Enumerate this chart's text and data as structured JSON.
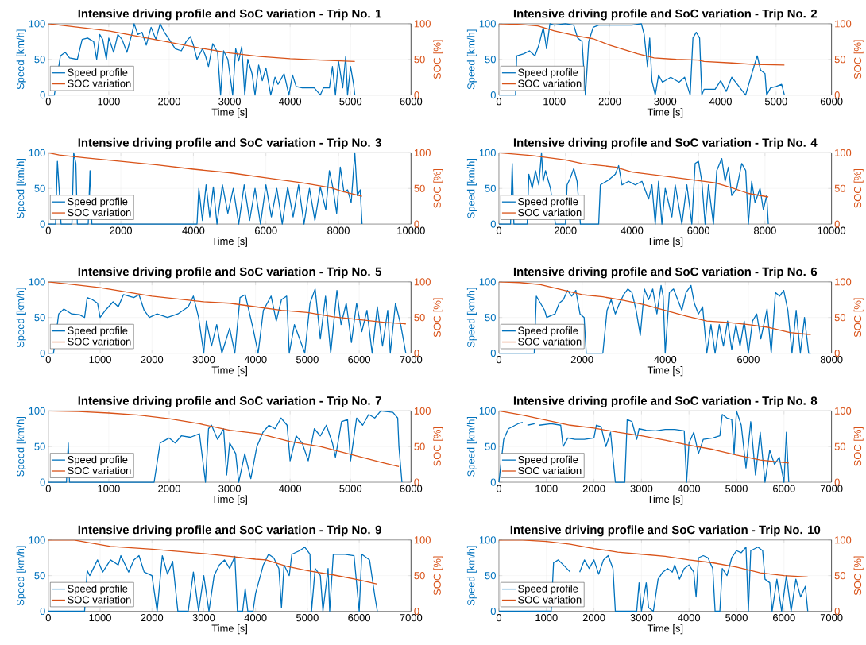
{
  "chart_data": [
    {
      "type": "line",
      "title": "Intensive driving profile and SoC variation - Trip No. 1",
      "xlabel": "Time [s]",
      "ylabel": "Speed [km/h]",
      "y2label": "SOC [%]",
      "xlim": [
        0,
        6000
      ],
      "xticks": [
        0,
        1000,
        2000,
        3000,
        4000,
        5000,
        6000
      ],
      "ylim": [
        0,
        100
      ],
      "yticks": [
        0,
        50,
        100
      ],
      "y2lim": [
        0,
        100
      ],
      "y2ticks": [
        0,
        50,
        100
      ],
      "grid": true,
      "legend": "bottom left",
      "series": [
        {
          "name": "Speed profile",
          "color": "#0072bd",
          "x": [
            0,
            100,
            200,
            280,
            350,
            480,
            560,
            650,
            750,
            800,
            850,
            900,
            960,
            1000,
            1080,
            1150,
            1220,
            1300,
            1380,
            1420,
            1480,
            1550,
            1620,
            1700,
            1780,
            1850,
            1920,
            2000,
            2100,
            2200,
            2280,
            2350,
            2400,
            2460,
            2550,
            2600,
            2650,
            2720,
            2800,
            2850,
            2900,
            2970,
            3050,
            3100,
            3150,
            3200,
            3250,
            3300,
            3370,
            3420,
            3480,
            3540,
            3600,
            3680,
            3750,
            3800,
            3900,
            3980,
            4040,
            4100,
            4200,
            4400,
            4500,
            4550,
            4650,
            4700,
            4750,
            4800,
            4870,
            4920,
            4950,
            5000,
            5050,
            5070
          ],
          "values": [
            0,
            0,
            55,
            60,
            52,
            50,
            78,
            80,
            75,
            50,
            85,
            78,
            50,
            80,
            60,
            85,
            78,
            60,
            85,
            100,
            85,
            88,
            70,
            95,
            78,
            100,
            88,
            78,
            65,
            62,
            75,
            82,
            70,
            50,
            65,
            55,
            40,
            72,
            60,
            0,
            62,
            50,
            0,
            65,
            48,
            68,
            0,
            50,
            30,
            0,
            42,
            20,
            38,
            0,
            25,
            15,
            30,
            0,
            28,
            12,
            10,
            10,
            0,
            10,
            10,
            40,
            0,
            48,
            10,
            54,
            0,
            40,
            15,
            0
          ]
        },
        {
          "name": "SOC variation",
          "color": "#d95319",
          "axis": "y2",
          "x": [
            0,
            500,
            1000,
            1500,
            2000,
            2500,
            3000,
            3500,
            4000,
            4500,
            5070
          ],
          "values": [
            100,
            95,
            90,
            82,
            74,
            66,
            59,
            54,
            51,
            49,
            47
          ]
        }
      ]
    },
    {
      "type": "line",
      "title": "Intensive driving profile and SoC variation - Trip No. 2",
      "xlabel": "Time [s]",
      "ylabel": "Speed [km/h]",
      "y2label": "SOC [%]",
      "xlim": [
        0,
        6000
      ],
      "xticks": [
        0,
        1000,
        2000,
        3000,
        4000,
        5000,
        6000
      ],
      "ylim": [
        0,
        100
      ],
      "yticks": [
        0,
        50,
        100
      ],
      "y2lim": [
        0,
        100
      ],
      "y2ticks": [
        0,
        50,
        100
      ],
      "grid": true,
      "legend": "bottom left",
      "series": [
        {
          "name": "Speed profile",
          "color": "#0072bd",
          "x": [
            0,
            300,
            320,
            450,
            550,
            650,
            720,
            800,
            860,
            920,
            1000,
            1200,
            1350,
            1420,
            1500,
            1560,
            1620,
            1700,
            1800,
            2100,
            2400,
            2570,
            2620,
            2680,
            2720,
            2760,
            2820,
            2880,
            2950,
            3100,
            3250,
            3350,
            3450,
            3500,
            3560,
            3620,
            3660,
            3700,
            3900,
            4000,
            4100,
            4200,
            4350,
            4450,
            4600,
            4660,
            4720,
            4800,
            4830,
            4900,
            5000,
            5100,
            5150
          ],
          "values": [
            0,
            0,
            55,
            58,
            62,
            55,
            70,
            95,
            65,
            100,
            98,
            100,
            98,
            80,
            75,
            0,
            75,
            95,
            98,
            98,
            98,
            100,
            85,
            40,
            80,
            20,
            0,
            28,
            18,
            25,
            18,
            25,
            0,
            80,
            88,
            80,
            0,
            8,
            8,
            20,
            5,
            25,
            10,
            0,
            40,
            55,
            35,
            30,
            0,
            10,
            12,
            15,
            0
          ]
        },
        {
          "name": "SOC variation",
          "color": "#d95319",
          "axis": "y2",
          "x": [
            0,
            400,
            700,
            1000,
            1400,
            1700,
            2000,
            2500,
            2800,
            3200,
            3600,
            3700,
            4200,
            4600,
            5150
          ],
          "values": [
            100,
            99,
            97,
            90,
            83,
            79,
            70,
            58,
            52,
            50,
            49,
            47,
            45,
            43,
            42
          ]
        }
      ]
    },
    {
      "type": "line",
      "title": "Intensive driving profile and SoC variation - Trip No. 3",
      "xlabel": "Time [s]",
      "ylabel": "Speed [km/h]",
      "y2label": "SOC [%]",
      "xlim": [
        0,
        10000
      ],
      "xticks": [
        0,
        2000,
        4000,
        6000,
        8000,
        10000
      ],
      "ylim": [
        0,
        100
      ],
      "yticks": [
        0,
        50,
        100
      ],
      "y2lim": [
        0,
        100
      ],
      "y2ticks": [
        0,
        50,
        100
      ],
      "grid": true,
      "legend": "bottom left",
      "series": [
        {
          "name": "Speed profile",
          "color": "#0072bd",
          "x": [
            0,
            200,
            250,
            310,
            350,
            650,
            700,
            760,
            800,
            1100,
            1150,
            1200,
            4100,
            4150,
            4250,
            4350,
            4450,
            4550,
            4650,
            4800,
            4950,
            5100,
            5250,
            5400,
            5550,
            5700,
            5850,
            6000,
            6150,
            6300,
            6450,
            6600,
            6750,
            6900,
            7050,
            7200,
            7350,
            7500,
            7650,
            7750,
            7850,
            7950,
            8050,
            8150,
            8250,
            8350,
            8450,
            8520,
            8600,
            8650
          ],
          "values": [
            0,
            0,
            88,
            40,
            0,
            0,
            100,
            85,
            0,
            0,
            75,
            0,
            0,
            50,
            5,
            55,
            10,
            52,
            0,
            55,
            15,
            50,
            0,
            55,
            5,
            50,
            0,
            55,
            10,
            50,
            0,
            52,
            10,
            55,
            0,
            50,
            5,
            52,
            20,
            75,
            50,
            15,
            80,
            45,
            48,
            30,
            100,
            40,
            48,
            0
          ]
        },
        {
          "name": "SOC variation",
          "color": "#d95319",
          "axis": "y2",
          "x": [
            0,
            300,
            1000,
            2000,
            3000,
            4000,
            5000,
            6000,
            7000,
            7800,
            8100,
            8650
          ],
          "values": [
            100,
            97,
            93,
            88,
            83,
            77,
            72,
            65,
            58,
            51,
            46,
            39
          ]
        }
      ]
    },
    {
      "type": "line",
      "title": "Intensive driving profile and SoC variation - Trip No. 4",
      "xlabel": "Time [s]",
      "ylabel": "Speed [km/h]",
      "y2label": "SOC [%]",
      "xlim": [
        0,
        10000
      ],
      "xticks": [
        0,
        2000,
        4000,
        6000,
        8000,
        10000
      ],
      "ylim": [
        0,
        100
      ],
      "yticks": [
        0,
        50,
        100
      ],
      "y2lim": [
        0,
        100
      ],
      "y2ticks": [
        0,
        50,
        100
      ],
      "grid": true,
      "legend": "bottom left",
      "series": [
        {
          "name": "Speed profile",
          "color": "#0072bd",
          "x": [
            0,
            350,
            400,
            450,
            850,
            900,
            1000,
            1100,
            1200,
            1280,
            1330,
            1400,
            1550,
            1700,
            2000,
            2050,
            2150,
            2250,
            2350,
            2450,
            3000,
            3050,
            3300,
            3500,
            3600,
            3700,
            3900,
            4100,
            4300,
            4500,
            4600,
            4700,
            4800,
            4900,
            5000,
            5200,
            5300,
            5500,
            5650,
            5800,
            5900,
            6000,
            6100,
            6200,
            6300,
            6450,
            6550,
            6700,
            6800,
            6900,
            7000,
            7150,
            7300,
            7420,
            7500,
            7600,
            7700,
            7850,
            7950,
            8050,
            8100
          ],
          "values": [
            0,
            0,
            85,
            0,
            0,
            70,
            50,
            75,
            55,
            100,
            60,
            75,
            50,
            0,
            0,
            55,
            65,
            78,
            60,
            0,
            0,
            55,
            62,
            70,
            82,
            55,
            60,
            55,
            60,
            35,
            55,
            0,
            60,
            0,
            50,
            10,
            55,
            0,
            55,
            0,
            85,
            88,
            60,
            0,
            55,
            0,
            75,
            92,
            60,
            80,
            40,
            50,
            85,
            75,
            0,
            60,
            30,
            50,
            20,
            40,
            0
          ]
        },
        {
          "name": "SOC variation",
          "color": "#d95319",
          "axis": "y2",
          "x": [
            0,
            500,
            1000,
            2000,
            2500,
            3500,
            4000,
            5000,
            6000,
            6500,
            7000,
            7500,
            8100
          ],
          "values": [
            100,
            98,
            96,
            90,
            85,
            80,
            73,
            67,
            61,
            58,
            51,
            43,
            38
          ]
        }
      ]
    },
    {
      "type": "line",
      "title": "Intensive driving profile and SoC variation - Trip No. 5",
      "xlabel": "Time [s]",
      "ylabel": "Speed [km/h]",
      "y2label": "SOC [%]",
      "xlim": [
        0,
        7000
      ],
      "xticks": [
        0,
        1000,
        2000,
        3000,
        4000,
        5000,
        6000,
        7000
      ],
      "ylim": [
        0,
        100
      ],
      "yticks": [
        0,
        50,
        100
      ],
      "y2lim": [
        0,
        100
      ],
      "y2ticks": [
        0,
        50,
        100
      ],
      "grid": true,
      "legend": "bottom left",
      "series": [
        {
          "name": "Speed profile",
          "color": "#0072bd",
          "x": [
            0,
            100,
            200,
            300,
            450,
            600,
            700,
            750,
            850,
            950,
            1000,
            1100,
            1250,
            1350,
            1450,
            1550,
            1650,
            1750,
            1850,
            1950,
            2100,
            2300,
            2500,
            2700,
            2800,
            2900,
            3000,
            3050,
            3150,
            3250,
            3350,
            3500,
            3600,
            3700,
            3800,
            3950,
            4050,
            4150,
            4300,
            4400,
            4500,
            4600,
            4650,
            4750,
            4850,
            4950,
            5050,
            5150,
            5250,
            5350,
            5450,
            5570,
            5650,
            5750,
            5850,
            5950,
            6050,
            6150,
            6250,
            6350,
            6450,
            6550,
            6600,
            6700,
            6800,
            6900
          ],
          "values": [
            0,
            0,
            55,
            62,
            55,
            54,
            50,
            78,
            75,
            70,
            50,
            60,
            72,
            65,
            82,
            80,
            78,
            82,
            60,
            50,
            55,
            50,
            55,
            65,
            80,
            50,
            0,
            45,
            10,
            40,
            0,
            35,
            0,
            78,
            82,
            35,
            0,
            60,
            80,
            45,
            75,
            80,
            0,
            40,
            20,
            0,
            70,
            90,
            20,
            80,
            0,
            88,
            40,
            70,
            15,
            70,
            30,
            60,
            0,
            65,
            10,
            60,
            0,
            70,
            40,
            0
          ]
        },
        {
          "name": "SOC variation",
          "color": "#d95319",
          "axis": "y2",
          "x": [
            0,
            500,
            1000,
            2000,
            3000,
            3500,
            4000,
            4500,
            5000,
            5500,
            6000,
            6500,
            6900
          ],
          "values": [
            100,
            96,
            92,
            80,
            72,
            70,
            65,
            60,
            57,
            51,
            47,
            43,
            41
          ]
        }
      ]
    },
    {
      "type": "line",
      "title": "Intensive driving profile and SoC variation - Trip No. 6",
      "xlabel": "Time [s]",
      "ylabel": "Speed [km/h]",
      "y2label": "SOC [%]",
      "xlim": [
        0,
        8000
      ],
      "xticks": [
        0,
        2000,
        4000,
        6000,
        8000
      ],
      "ylim": [
        0,
        100
      ],
      "yticks": [
        0,
        50,
        100
      ],
      "y2lim": [
        0,
        100
      ],
      "y2ticks": [
        0,
        50,
        100
      ],
      "grid": true,
      "legend": "bottom left",
      "series": [
        {
          "name": "Speed profile",
          "color": "#0072bd",
          "x": [
            0,
            850,
            900,
            1000,
            1100,
            1150,
            1350,
            1450,
            1550,
            1650,
            1750,
            1850,
            1950,
            2050,
            2100,
            2500,
            2600,
            2700,
            2800,
            2900,
            3000,
            3100,
            3200,
            3300,
            3400,
            3500,
            3600,
            3700,
            3800,
            3900,
            3950,
            4000,
            4100,
            4200,
            4300,
            4400,
            4500,
            4620,
            4700,
            4800,
            4900,
            5000,
            5100,
            5200,
            5300,
            5400,
            5500,
            5600,
            5700,
            5800,
            5900,
            6000,
            6100,
            6200,
            6300,
            6450,
            6550,
            6650,
            6750,
            6850,
            6950,
            7050,
            7150,
            7250,
            7350,
            7450,
            7500
          ],
          "values": [
            0,
            0,
            80,
            70,
            60,
            50,
            55,
            70,
            75,
            88,
            80,
            88,
            55,
            50,
            0,
            0,
            60,
            75,
            55,
            70,
            82,
            90,
            85,
            60,
            25,
            90,
            75,
            90,
            55,
            95,
            80,
            0,
            85,
            90,
            75,
            60,
            85,
            95,
            70,
            55,
            65,
            0,
            40,
            0,
            40,
            10,
            45,
            5,
            40,
            10,
            45,
            0,
            45,
            55,
            20,
            62,
            0,
            85,
            80,
            88,
            60,
            0,
            60,
            0,
            50,
            0,
            0
          ]
        },
        {
          "name": "SOC variation",
          "color": "#d95319",
          "axis": "y2",
          "x": [
            0,
            500,
            1000,
            1500,
            2000,
            2500,
            3000,
            3500,
            4000,
            4500,
            5000,
            5500,
            6000,
            6500,
            7000,
            7500
          ],
          "values": [
            100,
            99,
            96,
            89,
            82,
            79,
            74,
            68,
            60,
            52,
            45,
            43,
            40,
            36,
            29,
            26
          ]
        }
      ]
    },
    {
      "type": "line",
      "title": "Intensive driving profile and SoC variation - Trip No. 7",
      "xlabel": "Time [s]",
      "ylabel": "Speed [km/h]",
      "y2label": "SOC [%]",
      "xlim": [
        0,
        6000
      ],
      "xticks": [
        0,
        1000,
        2000,
        3000,
        4000,
        5000,
        6000
      ],
      "ylim": [
        0,
        100
      ],
      "yticks": [
        0,
        50,
        100
      ],
      "y2lim": [
        0,
        100
      ],
      "y2ticks": [
        0,
        50,
        100
      ],
      "grid": true,
      "legend": "bottom left",
      "series": [
        {
          "name": "Speed profile",
          "color": "#0072bd",
          "x": [
            0,
            300,
            330,
            350,
            1750,
            1850,
            2000,
            2100,
            2200,
            2350,
            2500,
            2600,
            2650,
            2700,
            2800,
            2900,
            2950,
            3000,
            3100,
            3150,
            3250,
            3350,
            3450,
            3550,
            3650,
            3750,
            3850,
            3950,
            4000,
            4100,
            4200,
            4300,
            4400,
            4500,
            4600,
            4700,
            4750,
            4850,
            4950,
            5000,
            5100,
            5200,
            5300,
            5400,
            5500,
            5700,
            5780,
            5800,
            5850
          ],
          "values": [
            0,
            0,
            55,
            0,
            0,
            55,
            62,
            55,
            65,
            63,
            68,
            0,
            75,
            80,
            60,
            75,
            10,
            55,
            40,
            0,
            40,
            5,
            50,
            70,
            80,
            75,
            90,
            80,
            30,
            65,
            55,
            30,
            75,
            65,
            80,
            55,
            35,
            85,
            88,
            30,
            90,
            80,
            95,
            90,
            100,
            98,
            90,
            50,
            0
          ]
        },
        {
          "name": "SOC variation",
          "color": "#d95319",
          "axis": "y2",
          "x": [
            0,
            500,
            1000,
            1500,
            2000,
            2500,
            3000,
            3500,
            4000,
            4500,
            5000,
            5500,
            5800
          ],
          "values": [
            100,
            99,
            97,
            94,
            89,
            82,
            73,
            68,
            57,
            50,
            39,
            28,
            22
          ]
        }
      ]
    },
    {
      "type": "line",
      "title": "Intensive driving profile and SoC variation - Trip No. 8",
      "xlabel": "Time [s]",
      "ylabel": "Speed [km/h]",
      "y2label": "SOC [%]",
      "xlim": [
        0,
        7000
      ],
      "xticks": [
        0,
        1000,
        2000,
        3000,
        4000,
        5000,
        6000,
        7000
      ],
      "ylim": [
        0,
        100
      ],
      "yticks": [
        0,
        50,
        100
      ],
      "y2lim": [
        0,
        100
      ],
      "y2ticks": [
        0,
        50,
        100
      ],
      "grid": true,
      "legend": "bottom left",
      "series": [
        {
          "name": "Speed profile",
          "color": "#0072bd",
          "x": [
            0,
            100,
            200,
            400,
            500,
            550,
            600,
            750,
            780,
            850,
            1100,
            1300,
            1350,
            1450,
            1600,
            1800,
            2000,
            2050,
            2150,
            2250,
            2350,
            2450,
            2650,
            2700,
            2800,
            2900,
            2950,
            3100,
            3300,
            3500,
            3700,
            3900,
            3950,
            4000,
            4100,
            4200,
            4300,
            4500,
            4650,
            4700,
            4800,
            4900,
            4950,
            5000,
            5100,
            5200,
            5300,
            5400,
            5500,
            5600,
            5700,
            5800,
            5900,
            6000,
            6050,
            6100
          ],
          "values": [
            0,
            60,
            75,
            82,
            84,
            null,
            80,
            82,
            null,
            80,
            82,
            80,
            50,
            62,
            60,
            60,
            62,
            80,
            78,
            50,
            70,
            0,
            0,
            88,
            85,
            60,
            75,
            73,
            72,
            74,
            74,
            72,
            0,
            55,
            70,
            40,
            60,
            62,
            65,
            95,
            90,
            88,
            40,
            100,
            80,
            20,
            85,
            10,
            70,
            0,
            45,
            25,
            35,
            0,
            70,
            0
          ]
        },
        {
          "name": "SOC variation",
          "color": "#d95319",
          "axis": "y2",
          "x": [
            0,
            500,
            1000,
            1500,
            2000,
            2500,
            3000,
            3500,
            4000,
            4500,
            5000,
            5500,
            6100
          ],
          "values": [
            100,
            94,
            87,
            80,
            76,
            70,
            65,
            59,
            52,
            46,
            38,
            31,
            27
          ]
        }
      ]
    },
    {
      "type": "line",
      "title": "Intensive driving profile and SoC variation - Trip No. 9",
      "xlabel": "Time [s]",
      "ylabel": "Speed [km/h]",
      "y2label": "SOC [%]",
      "xlim": [
        0,
        7000
      ],
      "xticks": [
        0,
        1000,
        2000,
        3000,
        4000,
        5000,
        6000,
        7000
      ],
      "ylim": [
        0,
        100
      ],
      "yticks": [
        0,
        50,
        100
      ],
      "y2lim": [
        0,
        100
      ],
      "y2ticks": [
        0,
        50,
        100
      ],
      "grid": true,
      "legend": "bottom left",
      "series": [
        {
          "name": "Speed profile",
          "color": "#0072bd",
          "x": [
            0,
            700,
            750,
            800,
            950,
            1050,
            1200,
            1350,
            1400,
            1550,
            1650,
            1750,
            1850,
            2000,
            2100,
            2200,
            2300,
            2400,
            2500,
            2700,
            2800,
            2900,
            3000,
            3100,
            3200,
            3300,
            3400,
            3500,
            3600,
            3650,
            3750,
            3800,
            3850,
            3950,
            4000,
            4150,
            4250,
            4350,
            4450,
            4500,
            4550,
            4650,
            4700,
            4850,
            4950,
            5050,
            5080,
            5150,
            5250,
            5300,
            5400,
            5430,
            5500,
            5700,
            5900,
            6000,
            6050,
            6200,
            6300,
            6350
          ],
          "values": [
            0,
            0,
            57,
            50,
            72,
            55,
            72,
            65,
            78,
            55,
            72,
            78,
            55,
            50,
            0,
            78,
            52,
            70,
            0,
            0,
            55,
            0,
            50,
            0,
            50,
            65,
            72,
            60,
            77,
            0,
            0,
            32,
            0,
            0,
            25,
            65,
            80,
            75,
            60,
            5,
            65,
            50,
            80,
            85,
            90,
            80,
            0,
            60,
            50,
            0,
            60,
            0,
            80,
            80,
            78,
            0,
            80,
            72,
            22,
            0
          ]
        },
        {
          "name": "SOC variation",
          "color": "#d95319",
          "axis": "y2",
          "x": [
            0,
            500,
            800,
            1200,
            2000,
            3000,
            3500,
            4000,
            4200,
            4600,
            5000,
            5500,
            6000,
            6350
          ],
          "values": [
            100,
            100,
            96,
            91,
            87,
            81,
            77,
            73,
            72,
            63,
            57,
            51,
            44,
            38
          ]
        }
      ]
    },
    {
      "type": "line",
      "title": "Intensive driving profile and SoC variation - Trip No. 10",
      "xlabel": "Time [s]",
      "ylabel": "Speed [km/h]",
      "y2label": "SOC [%]",
      "xlim": [
        0,
        7000
      ],
      "xticks": [
        0,
        1000,
        2000,
        3000,
        4000,
        5000,
        6000,
        7000
      ],
      "ylim": [
        0,
        100
      ],
      "yticks": [
        0,
        50,
        100
      ],
      "y2lim": [
        0,
        100
      ],
      "y2ticks": [
        0,
        50,
        100
      ],
      "grid": true,
      "legend": "bottom left",
      "series": [
        {
          "name": "Speed profile",
          "color": "#0072bd",
          "x": [
            0,
            500,
            1100,
            1150,
            1250,
            1400,
            1500,
            1600,
            1700,
            1800,
            1900,
            2000,
            2100,
            2200,
            2300,
            2400,
            2450,
            2900,
            2950,
            3000,
            3100,
            3150,
            3250,
            3350,
            3450,
            3550,
            3650,
            3700,
            3800,
            3900,
            4000,
            4100,
            4150,
            4200,
            4300,
            4400,
            4500,
            4550,
            4650,
            4700,
            4800,
            4900,
            5000,
            5100,
            5200,
            5250,
            5300,
            5450,
            5550,
            5600,
            5700,
            5750,
            5850,
            5950,
            6050,
            6150,
            6250,
            6350,
            6450,
            6500
          ],
          "values": [
            0,
            0,
            0,
            68,
            72,
            62,
            55,
            null,
            55,
            72,
            60,
            72,
            52,
            72,
            78,
            60,
            0,
            0,
            40,
            0,
            40,
            5,
            0,
            45,
            55,
            60,
            55,
            65,
            45,
            60,
            65,
            55,
            20,
            75,
            78,
            75,
            60,
            0,
            0,
            60,
            50,
            75,
            85,
            82,
            90,
            0,
            85,
            90,
            85,
            45,
            40,
            0,
            45,
            0,
            50,
            0,
            45,
            20,
            35,
            0
          ]
        },
        {
          "name": "SOC variation",
          "color": "#d95319",
          "axis": "y2",
          "x": [
            0,
            500,
            1000,
            1500,
            2000,
            2500,
            3000,
            3500,
            4000,
            4500,
            5000,
            5500,
            6000,
            6500
          ],
          "values": [
            100,
            100,
            98,
            94,
            88,
            83,
            80,
            77,
            72,
            68,
            62,
            54,
            50,
            48
          ]
        }
      ]
    }
  ]
}
